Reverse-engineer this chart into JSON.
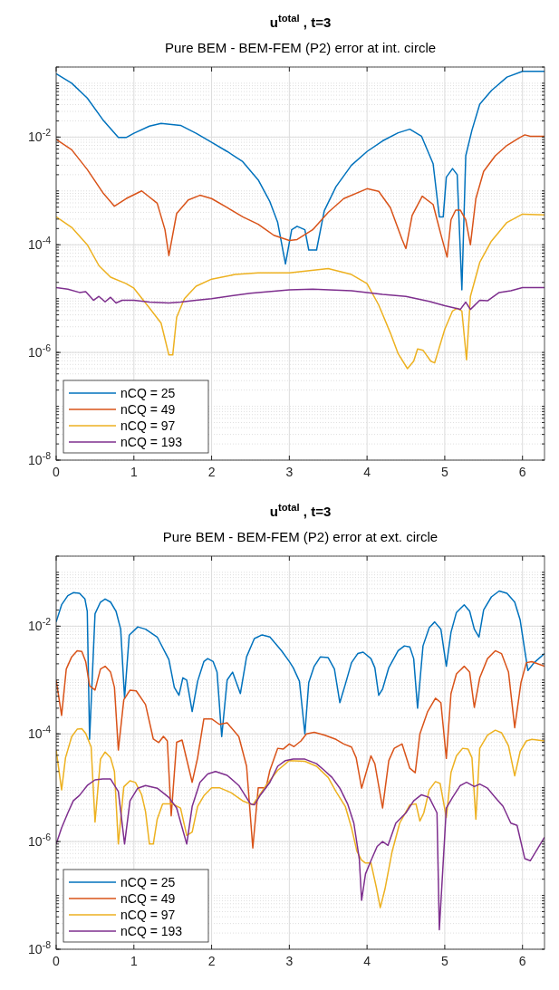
{
  "chart_data": [
    {
      "type": "line",
      "title": "u$^{total}$ ,  t=3",
      "subtitle": "Pure BEM - BEM-FEM (P2) error at int. circle",
      "log": true,
      "grid": true,
      "legend": "bottom left",
      "xlim": [
        0,
        6.2832
      ],
      "xticks": [
        0,
        1,
        2,
        3,
        4,
        5,
        6
      ],
      "ylim": [
        1e-08,
        0.2
      ],
      "yticks": [
        {
          "value": 1e-08,
          "label": "10$^{-8}$"
        },
        {
          "value": 1e-06,
          "label": "10$^{-6}$"
        },
        {
          "value": 0.0001,
          "label": "10$^{-4}$"
        },
        {
          "value": 0.01,
          "label": "10$^{-2}$"
        }
      ],
      "series": [
        {
          "name": "nCQ = 25",
          "color": "#0072bd",
          "x": [
            0,
            0.2,
            0.4,
            0.6,
            0.8,
            0.9,
            1.0,
            1.2,
            1.35,
            1.6,
            1.8,
            2.0,
            2.2,
            2.4,
            2.6,
            2.75,
            2.85,
            2.95,
            3.03,
            3.1,
            3.2,
            3.25,
            3.35,
            3.45,
            3.6,
            3.8,
            4.0,
            4.2,
            4.4,
            4.55,
            4.7,
            4.85,
            4.93,
            4.98,
            5.02,
            5.1,
            5.16,
            5.22,
            5.27,
            5.35,
            5.45,
            5.6,
            5.8,
            6.0,
            6.2832
          ],
          "values": [
            0.15,
            0.1,
            0.053,
            0.021,
            0.0098,
            0.0098,
            0.0118,
            0.016,
            0.018,
            0.0165,
            0.0118,
            0.008,
            0.0054,
            0.0035,
            0.0016,
            0.00063,
            0.00026,
            4.4e-05,
            0.00019,
            0.00022,
            0.00019,
            8e-05,
            8e-05,
            0.00043,
            0.0012,
            0.003,
            0.0054,
            0.0085,
            0.012,
            0.014,
            0.0104,
            0.0032,
            0.00033,
            0.00033,
            0.0018,
            0.0026,
            0.002,
            1.45e-05,
            0.0045,
            0.0135,
            0.041,
            0.073,
            0.13,
            0.166,
            0.166
          ]
        },
        {
          "name": "nCQ = 49",
          "color": "#d95319",
          "x": [
            0,
            0.2,
            0.4,
            0.6,
            0.75,
            0.9,
            1.1,
            1.3,
            1.4,
            1.45,
            1.55,
            1.7,
            1.85,
            2.0,
            2.2,
            2.4,
            2.6,
            2.8,
            3.0,
            3.1,
            3.3,
            3.5,
            3.7,
            4.0,
            4.15,
            4.3,
            4.45,
            4.5,
            4.58,
            4.71,
            4.85,
            4.95,
            5.03,
            5.08,
            5.14,
            5.2,
            5.27,
            5.33,
            5.4,
            5.5,
            5.65,
            5.8,
            5.95,
            6.03,
            6.1,
            6.2832
          ],
          "values": [
            0.0091,
            0.0058,
            0.0025,
            0.00093,
            0.00052,
            0.00072,
            0.001,
            0.00059,
            0.00019,
            6.3e-05,
            0.00038,
            0.00068,
            0.00083,
            0.00072,
            0.00049,
            0.00033,
            0.00024,
            0.00015,
            0.00012,
            0.000125,
            0.00019,
            0.0004,
            0.00072,
            0.0011,
            0.00098,
            0.00049,
            0.000126,
            8.5e-05,
            0.00035,
            0.0008,
            0.00056,
            0.000155,
            5.9e-05,
            0.00029,
            0.00044,
            0.00044,
            0.00029,
            0.0001,
            0.00072,
            0.0023,
            0.0045,
            0.007,
            0.0095,
            0.011,
            0.0103,
            0.0103
          ]
        },
        {
          "name": "nCQ = 97",
          "color": "#edb120",
          "x": [
            0,
            0.2,
            0.4,
            0.55,
            0.7,
            0.9,
            1.0,
            1.2,
            1.35,
            1.45,
            1.5,
            1.55,
            1.65,
            1.8,
            2.0,
            2.3,
            2.6,
            3.0,
            3.5,
            3.8,
            4.0,
            4.15,
            4.3,
            4.4,
            4.52,
            4.6,
            4.65,
            4.72,
            4.82,
            4.87,
            5.0,
            5.1,
            5.16,
            5.22,
            5.28,
            5.33,
            5.45,
            5.6,
            5.8,
            6.0,
            6.2832
          ],
          "values": [
            0.00033,
            0.00021,
            0.0001,
            4.1e-05,
            2.5e-05,
            1.9e-05,
            1.56e-05,
            6.7e-06,
            3.5e-06,
            9e-07,
            9e-07,
            4.5e-06,
            1e-05,
            1.7e-05,
            2.3e-05,
            2.8e-05,
            3e-05,
            3e-05,
            3.6e-05,
            2.8e-05,
            1.9e-05,
            7.6e-06,
            2.3e-06,
            9.5e-07,
            5e-07,
            6.9e-07,
            1.16e-06,
            1.1e-06,
            6.9e-07,
            6.4e-07,
            2.7e-06,
            5.9e-06,
            6.6e-06,
            5.9e-06,
            7.3e-07,
            1.1e-05,
            4.7e-05,
            0.000117,
            0.00026,
            0.00037,
            0.00036
          ]
        },
        {
          "name": "nCQ = 193",
          "color": "#7e2f8e",
          "x": [
            0,
            0.15,
            0.3,
            0.38,
            0.48,
            0.55,
            0.63,
            0.7,
            0.77,
            0.85,
            1.0,
            1.2,
            1.45,
            1.6,
            1.8,
            2.0,
            2.5,
            3.0,
            3.3,
            3.8,
            4.2,
            4.5,
            4.8,
            5.0,
            5.2,
            5.27,
            5.33,
            5.45,
            5.55,
            5.7,
            5.85,
            6.0,
            6.2832
          ],
          "values": [
            1.6e-05,
            1.5e-05,
            1.3e-05,
            1.35e-05,
            9.3e-06,
            1.1e-05,
            8.7e-06,
            1.06e-05,
            8.3e-06,
            9.3e-06,
            9.3e-06,
            8.6e-06,
            8.3e-06,
            8.6e-06,
            9.3e-06,
            1e-05,
            1.26e-05,
            1.45e-05,
            1.5e-05,
            1.4e-05,
            1.2e-05,
            1.1e-05,
            8.9e-06,
            7.4e-06,
            6.3e-06,
            8.6e-06,
            6.3e-06,
            9.3e-06,
            9.1e-06,
            1.3e-05,
            1.4e-05,
            1.6e-05,
            1.6e-05
          ]
        }
      ]
    },
    {
      "type": "line",
      "title": "u$^{total}$ ,  t=3",
      "subtitle": "Pure BEM - BEM-FEM (P2) error at ext. circle",
      "log": true,
      "grid": true,
      "legend": "bottom left",
      "xlim": [
        0,
        6.2832
      ],
      "xticks": [
        0,
        1,
        2,
        3,
        4,
        5,
        6
      ],
      "ylim": [
        1e-08,
        0.2
      ],
      "yticks": [
        {
          "value": 1e-08,
          "label": "10$^{-8}$"
        },
        {
          "value": 1e-06,
          "label": "10$^{-6}$"
        },
        {
          "value": 0.0001,
          "label": "10$^{-4}$"
        },
        {
          "value": 0.01,
          "label": "10$^{-2}$"
        }
      ],
      "series": [
        {
          "name": "nCQ = 25",
          "color": "#0072bd",
          "x": [
            0,
            0.07,
            0.15,
            0.22,
            0.3,
            0.37,
            0.4,
            0.43,
            0.5,
            0.57,
            0.63,
            0.7,
            0.77,
            0.83,
            0.88,
            0.94,
            1.05,
            1.15,
            1.3,
            1.45,
            1.52,
            1.58,
            1.63,
            1.68,
            1.75,
            1.82,
            1.9,
            1.95,
            2.02,
            2.07,
            2.13,
            2.2,
            2.27,
            2.37,
            2.45,
            2.55,
            2.65,
            2.75,
            2.9,
            3.0,
            3.05,
            3.13,
            3.2,
            3.25,
            3.32,
            3.4,
            3.5,
            3.58,
            3.65,
            3.72,
            3.8,
            3.88,
            3.95,
            4.05,
            4.1,
            4.15,
            4.2,
            4.28,
            4.4,
            4.48,
            4.55,
            4.6,
            4.65,
            4.72,
            4.8,
            4.87,
            4.95,
            5.02,
            5.08,
            5.15,
            5.25,
            5.32,
            5.38,
            5.44,
            5.5,
            5.6,
            5.7,
            5.8,
            5.9,
            5.97,
            6.03,
            6.07,
            6.15,
            6.2832
          ],
          "values": [
            0.012,
            0.025,
            0.037,
            0.042,
            0.041,
            0.032,
            0.019,
            7.9e-05,
            0.017,
            0.028,
            0.032,
            0.028,
            0.019,
            0.0088,
            0.00046,
            0.0068,
            0.0097,
            0.0088,
            0.0063,
            0.0024,
            0.00073,
            0.00052,
            0.0011,
            0.001,
            0.00026,
            0.00095,
            0.0022,
            0.0025,
            0.0022,
            0.0014,
            8.9e-05,
            0.001,
            0.0014,
            0.00056,
            0.0027,
            0.0059,
            0.0069,
            0.0063,
            0.0035,
            0.0022,
            0.0017,
            0.00095,
            0.0001,
            0.0009,
            0.0018,
            0.0027,
            0.0026,
            0.0016,
            0.00038,
            0.00083,
            0.0021,
            0.0031,
            0.0033,
            0.0025,
            0.0017,
            0.00052,
            0.00068,
            0.0017,
            0.0035,
            0.0043,
            0.0041,
            0.0025,
            0.0003,
            0.0043,
            0.0094,
            0.012,
            0.0088,
            0.0018,
            0.0077,
            0.018,
            0.025,
            0.019,
            0.0088,
            0.0063,
            0.02,
            0.035,
            0.045,
            0.041,
            0.028,
            0.013,
            0.0035,
            0.0015,
            0.0021,
            0.0031
          ]
        },
        {
          "name": "nCQ = 49",
          "color": "#d95319",
          "x": [
            0,
            0.07,
            0.13,
            0.2,
            0.27,
            0.33,
            0.38,
            0.43,
            0.5,
            0.57,
            0.63,
            0.7,
            0.75,
            0.8,
            0.87,
            0.95,
            1.03,
            1.15,
            1.25,
            1.32,
            1.38,
            1.43,
            1.48,
            1.55,
            1.62,
            1.75,
            1.82,
            1.9,
            2.0,
            2.1,
            2.2,
            2.35,
            2.45,
            2.53,
            2.6,
            2.7,
            2.75,
            2.85,
            2.92,
            3.0,
            3.06,
            3.15,
            3.22,
            3.32,
            3.45,
            3.6,
            3.7,
            3.8,
            3.86,
            3.93,
            4.05,
            4.1,
            4.2,
            4.28,
            4.35,
            4.45,
            4.55,
            4.62,
            4.68,
            4.78,
            4.88,
            4.95,
            5.02,
            5.08,
            5.15,
            5.25,
            5.32,
            5.38,
            5.45,
            5.55,
            5.65,
            5.73,
            5.82,
            5.9,
            5.98,
            6.05,
            6.12,
            6.2832
          ],
          "values": [
            0.001,
            0.00022,
            0.0016,
            0.0027,
            0.0035,
            0.0034,
            0.0022,
            0.00078,
            0.00065,
            0.0016,
            0.0018,
            0.0014,
            0.00073,
            5e-05,
            0.00043,
            0.00065,
            0.00063,
            0.00035,
            8e-05,
            6.9e-05,
            9e-05,
            7.4e-05,
            3e-06,
            7e-05,
            7.7e-05,
            1.26e-05,
            3.6e-05,
            0.00019,
            0.00019,
            0.00015,
            0.00016,
            8.9e-05,
            2.5e-05,
            7.6e-07,
            1e-05,
            1e-05,
            2.1e-05,
            5.4e-05,
            5.2e-05,
            6.5e-05,
            5.8e-05,
            7.4e-05,
            0.0001,
            0.000107,
            9.5e-05,
            7.9e-05,
            6.5e-05,
            5.7e-05,
            3.6e-05,
            9.8e-06,
            3.9e-05,
            2.8e-05,
            4.2e-06,
            3.2e-05,
            5.4e-05,
            6.5e-05,
            2.3e-05,
            1.9e-05,
            0.0001,
            0.00026,
            0.00046,
            0.00038,
            3.5e-05,
            0.00056,
            0.0013,
            0.0018,
            0.0014,
            0.00031,
            0.0011,
            0.0025,
            0.0035,
            0.0031,
            0.0014,
            0.00013,
            0.00089,
            0.0021,
            0.0022,
            0.0018
          ]
        },
        {
          "name": "nCQ = 97",
          "color": "#edb120",
          "x": [
            0,
            0.07,
            0.12,
            0.2,
            0.27,
            0.33,
            0.38,
            0.45,
            0.5,
            0.57,
            0.63,
            0.7,
            0.75,
            0.8,
            0.87,
            0.95,
            1.02,
            1.1,
            1.15,
            1.2,
            1.25,
            1.3,
            1.37,
            1.5,
            1.6,
            1.68,
            1.75,
            1.82,
            1.9,
            2.0,
            2.1,
            2.25,
            2.4,
            2.53,
            2.7,
            2.85,
            3.0,
            3.2,
            3.35,
            3.5,
            3.6,
            3.72,
            3.8,
            3.87,
            3.93,
            3.98,
            4.05,
            4.12,
            4.17,
            4.23,
            4.32,
            4.42,
            4.55,
            4.63,
            4.68,
            4.73,
            4.8,
            4.88,
            4.94,
            5.02,
            5.08,
            5.15,
            5.23,
            5.3,
            5.35,
            5.4,
            5.45,
            5.55,
            5.65,
            5.73,
            5.82,
            5.9,
            5.97,
            6.05,
            6.12,
            6.2832
          ],
          "values": [
            5e-05,
            9.1e-06,
            3.6e-05,
            8.9e-05,
            0.000122,
            0.000125,
            0.000102,
            5.7e-05,
            2.3e-06,
            3.4e-05,
            4.6e-05,
            3.6e-05,
            2e-05,
            9e-07,
            1.04e-05,
            1.35e-05,
            1.25e-05,
            7.4e-06,
            3.6e-06,
            9e-07,
            9e-07,
            2.6e-06,
            5e-06,
            5e-06,
            4.2e-06,
            1.3e-06,
            1.5e-06,
            4.5e-06,
            7.1e-06,
            1e-05,
            1e-05,
            8.1e-06,
            5.7e-06,
            4.8e-06,
            1.1e-05,
            2.1e-05,
            3.2e-05,
            3.1e-05,
            2.5e-05,
            1.55e-05,
            8.5e-06,
            4.5e-06,
            1.8e-06,
            6.6e-07,
            4.5e-07,
            4e-07,
            4e-07,
            1.4e-07,
            5.9e-08,
            1.3e-07,
            6.3e-07,
            2.2e-06,
            4.8e-06,
            5e-06,
            2.4e-06,
            3.4e-06,
            9.1e-06,
            1.3e-05,
            1.2e-05,
            2.8e-06,
            1.9e-05,
            3.9e-05,
            5.4e-05,
            5.2e-05,
            3.6e-05,
            2.6e-06,
            5.4e-05,
            9.5e-05,
            0.000117,
            0.000105,
            6e-05,
            1.66e-05,
            4.7e-05,
            7.4e-05,
            7.9e-05,
            7.4e-05
          ]
        },
        {
          "name": "nCQ = 193",
          "color": "#7e2f8e",
          "x": [
            0,
            0.07,
            0.15,
            0.22,
            0.3,
            0.4,
            0.5,
            0.6,
            0.7,
            0.8,
            0.88,
            0.95,
            1.05,
            1.15,
            1.3,
            1.45,
            1.55,
            1.68,
            1.75,
            1.85,
            1.95,
            2.05,
            2.2,
            2.35,
            2.5,
            2.55,
            2.63,
            2.75,
            2.85,
            2.95,
            3.05,
            3.2,
            3.35,
            3.45,
            3.55,
            3.65,
            3.75,
            3.83,
            3.9,
            3.93,
            3.98,
            4.05,
            4.13,
            4.2,
            4.27,
            4.37,
            4.5,
            4.6,
            4.7,
            4.8,
            4.9,
            4.93,
            5.02,
            5.1,
            5.2,
            5.28,
            5.38,
            5.45,
            5.55,
            5.65,
            5.75,
            5.85,
            5.93,
            6.03,
            6.1,
            6.2832
          ],
          "values": [
            9e-07,
            1.8e-06,
            3.4e-06,
            5.7e-06,
            7.2e-06,
            1.1e-05,
            1.4e-05,
            1.45e-05,
            1.45e-05,
            8.5e-06,
            9e-07,
            5.7e-06,
            9.8e-06,
            1.1e-05,
            9.8e-06,
            6.6e-06,
            4.2e-06,
            9e-07,
            4.5e-06,
            1.26e-05,
            1.8e-05,
            2e-05,
            1.7e-05,
            1.1e-05,
            5e-06,
            4.8e-06,
            7.4e-06,
            1.26e-05,
            2.5e-05,
            3.2e-05,
            3.4e-05,
            3.4e-05,
            2.8e-05,
            2.1e-05,
            1.55e-05,
            9.8e-06,
            5e-06,
            2.2e-06,
            4.8e-07,
            8.1e-08,
            2.5e-07,
            4.4e-07,
            8.1e-07,
            1e-06,
            8.5e-07,
            2.2e-06,
            3.4e-06,
            5.7e-06,
            7.4e-06,
            6.6e-06,
            3.4e-06,
            2.3e-08,
            4.2e-06,
            6.6e-06,
            1.1e-05,
            1.26e-05,
            1.05e-05,
            1.17e-05,
            9.8e-06,
            6.6e-06,
            4.5e-06,
            2.2e-06,
            2e-06,
            4.8e-07,
            4.4e-07,
            1.2e-06
          ]
        }
      ]
    }
  ]
}
